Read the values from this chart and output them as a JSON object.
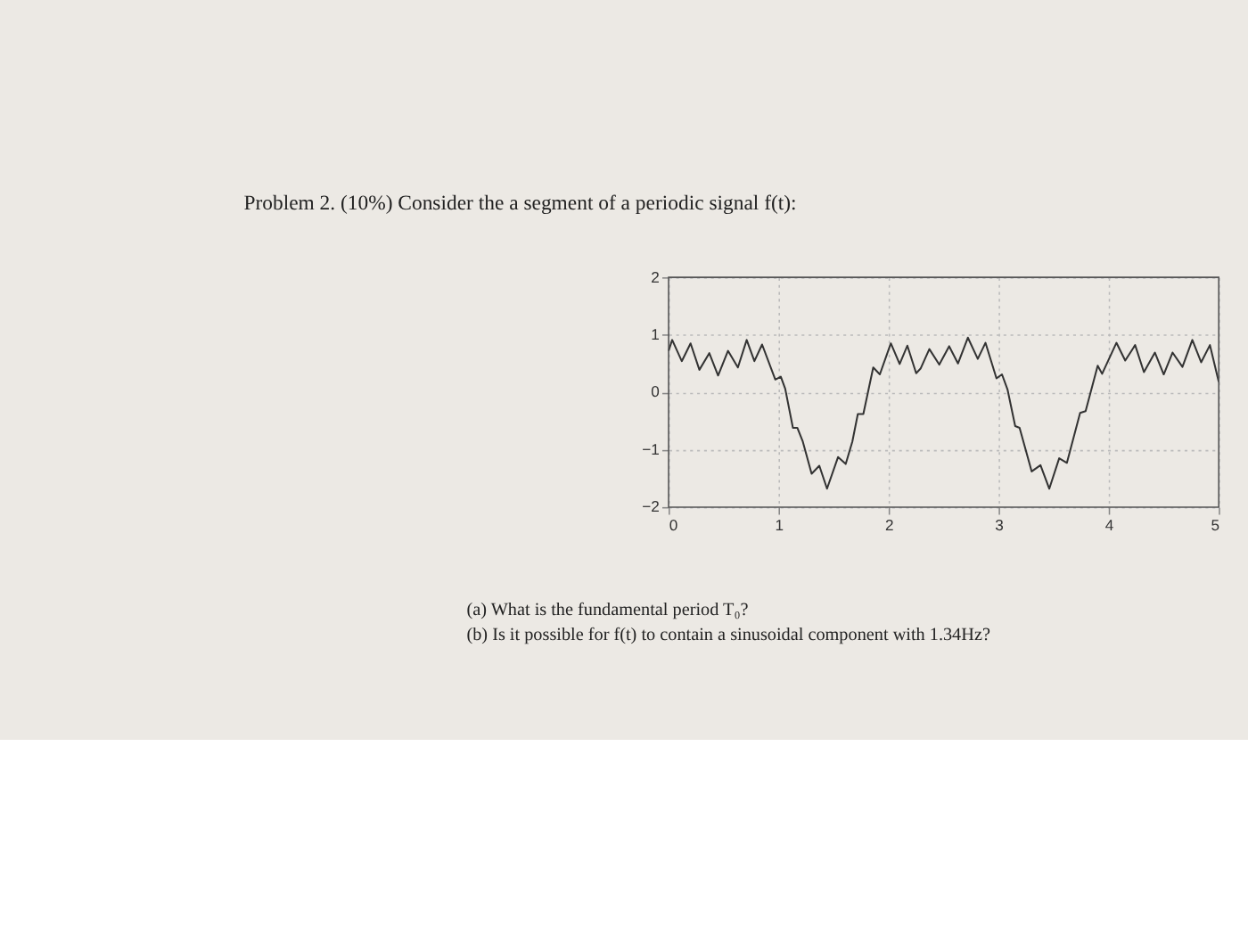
{
  "chart_data": {
    "type": "line",
    "title": "Problem 2. (10%) Consider the a segment of a periodic signal f(t):",
    "annotations": [
      "(a) What is the fundamental period T₀?",
      "(b) Is it possible for f(t) to contain a sinusoidal component with 1.34Hz?"
    ],
    "x": [
      0,
      0.033,
      0.12,
      0.2,
      0.28,
      0.37,
      0.45,
      0.54,
      0.63,
      0.71,
      0.78,
      0.85,
      0.97,
      1.02,
      1.06,
      1.13,
      1.17,
      1.22,
      1.3,
      1.37,
      1.44,
      1.54,
      1.61,
      1.67,
      1.72,
      1.77,
      1.86,
      1.92,
      2.02,
      2.1,
      2.17,
      2.25,
      2.29,
      2.37,
      2.46,
      2.55,
      2.63,
      2.72,
      2.81,
      2.88,
      2.98,
      3.03,
      3.08,
      3.15,
      3.19,
      3.3,
      3.38,
      3.46,
      3.55,
      3.62,
      3.74,
      3.79,
      3.9,
      3.94,
      4.07,
      4.15,
      4.24,
      4.32,
      4.42,
      4.5,
      4.58,
      4.67,
      4.76,
      4.84,
      4.92,
      5.0
    ],
    "series": [
      {
        "color": "#333333",
        "values": [
          0.72,
          0.91,
          0.54,
          0.85,
          0.39,
          0.68,
          0.29,
          0.72,
          0.43,
          0.91,
          0.54,
          0.83,
          0.22,
          0.27,
          0.06,
          -0.62,
          -0.62,
          -0.86,
          -1.42,
          -1.28,
          -1.68,
          -1.13,
          -1.25,
          -0.86,
          -0.38,
          -0.38,
          0.43,
          0.31,
          0.85,
          0.49,
          0.81,
          0.33,
          0.41,
          0.75,
          0.48,
          0.8,
          0.5,
          0.95,
          0.58,
          0.86,
          0.24,
          0.31,
          0.05,
          -0.59,
          -0.62,
          -1.38,
          -1.27,
          -1.68,
          -1.15,
          -1.23,
          -0.36,
          -0.33,
          0.46,
          0.32,
          0.86,
          0.55,
          0.82,
          0.35,
          0.69,
          0.31,
          0.69,
          0.44,
          0.91,
          0.52,
          0.82,
          0.18
        ]
      }
    ],
    "xlim": [
      0,
      5
    ],
    "ylim": [
      -2,
      2
    ],
    "xticks": [
      0,
      1,
      2,
      3,
      4,
      5
    ],
    "yticks": [
      -2,
      -1,
      0,
      1,
      2
    ],
    "grid": true,
    "line_style": "solid",
    "marker": "none",
    "legend": false
  }
}
